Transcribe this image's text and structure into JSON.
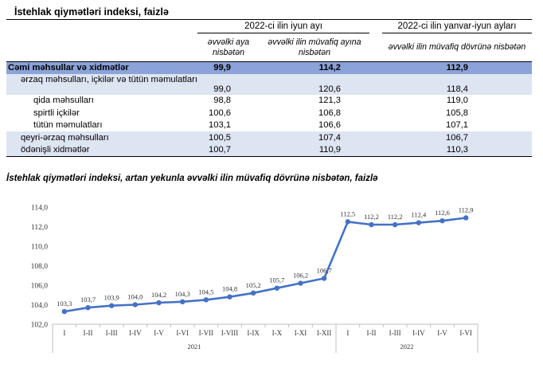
{
  "page_title": "İstehlak qiymətləri indeksi, faizlə",
  "table": {
    "group1_label": "2022-ci ilin iyun ayı",
    "group2_label": "2022-ci ilin yanvar-iyun ayları",
    "col1_label": "əvvəlki aya nisbətən",
    "col2_label": "əvvəlki ilin müvafiq ayına nisbətən",
    "col3_label": "əvvəlki ilin müvafiq dövrünə nisbətən",
    "rows": [
      {
        "label": "Cəmi məhsullar və xidmətlər",
        "v1": "99,9",
        "v2": "114,2",
        "v3": "112,9"
      },
      {
        "label": "ərzaq məhsulları, içkilər və tütün məmulatları",
        "v1": "99,0",
        "v2": "120,6",
        "v3": "118,4"
      },
      {
        "label": "qida məhsulları",
        "v1": "98,8",
        "v2": "121,3",
        "v3": "119,0"
      },
      {
        "label": "spirtli içkilər",
        "v1": "100,6",
        "v2": "106,8",
        "v3": "105,8"
      },
      {
        "label": "tütün məmulatları",
        "v1": "103,1",
        "v2": "106,6",
        "v3": "107,1"
      },
      {
        "label": "qeyri-ərzaq məhsulları",
        "v1": "100,5",
        "v2": "107,4",
        "v3": "106,7"
      },
      {
        "label": "ödənişli xidmətlər",
        "v1": "100,7",
        "v2": "110,9",
        "v3": "110,3"
      }
    ]
  },
  "chart_title": "İstehlak qiymətləri indeksi, artan yekunla əvvəlki ilin müvafiq dövrünə nisbətən, faizlə",
  "chart_data": {
    "type": "line",
    "title": "",
    "xlabel": "",
    "ylabel": "",
    "ylim": [
      102.0,
      114.0
    ],
    "yticks": [
      "102,0",
      "104,0",
      "106,0",
      "108,0",
      "110,0",
      "112,0",
      "114,0"
    ],
    "categories": [
      "I",
      "I-II",
      "I-III",
      "I-IV",
      "I-V",
      "I-VI",
      "I-VII",
      "I-VIII",
      "I-IX",
      "I-X",
      "I-XI",
      "I-XII",
      "I",
      "I-II",
      "I-III",
      "I-IV",
      "I-V",
      "I-VI"
    ],
    "year_groups": [
      {
        "label": "2021",
        "count": 12
      },
      {
        "label": "2022",
        "count": 6
      }
    ],
    "values": [
      103.3,
      103.7,
      103.9,
      104.0,
      104.2,
      104.3,
      104.5,
      104.8,
      105.2,
      105.7,
      106.2,
      106.7,
      112.5,
      112.2,
      112.2,
      112.4,
      112.6,
      112.9
    ],
    "value_labels": [
      "103,3",
      "103,7",
      "103,9",
      "104,0",
      "104,2",
      "104,3",
      "104,5",
      "104,8",
      "105,2",
      "105,7",
      "106,2",
      "106,7",
      "112,5",
      "112,2",
      "112,2",
      "112,4",
      "112,6",
      "112,9"
    ],
    "line_color": "#4472c4",
    "grid": false,
    "legend": "none"
  },
  "colors": {
    "total_row": "#8ba3d9",
    "shaded_row": "#dde4f2"
  }
}
